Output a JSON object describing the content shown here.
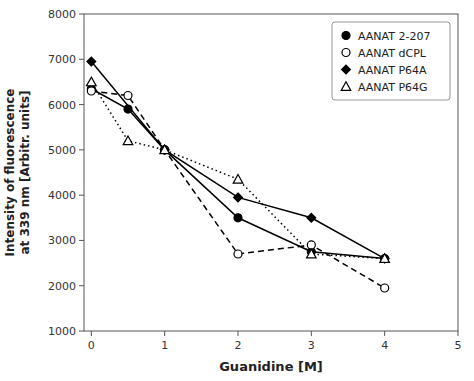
{
  "chart_data": {
    "type": "line",
    "xlabel": "Guanidine [M]",
    "ylabel": "Intensity of fluorescence\nat 339 nm [Arbitr. units]",
    "xlim": [
      -0.1,
      5
    ],
    "ylim": [
      1000,
      8000
    ],
    "xticks": [
      0,
      1,
      2,
      3,
      4,
      5
    ],
    "yticks": [
      1000,
      2000,
      3000,
      4000,
      5000,
      6000,
      7000,
      8000
    ],
    "grid": false,
    "legend": "upper right",
    "series": [
      {
        "name": "AANAT 2-207",
        "color": "black",
        "marker": "circle",
        "line_style": "solid",
        "x": [
          0,
          0.5,
          1,
          2,
          3,
          4
        ],
        "values": [
          6350,
          5900,
          5000,
          3500,
          2750,
          2600
        ]
      },
      {
        "name": "AANAT dCPL",
        "color": "black",
        "marker": "circle-open",
        "line_style": "dashed",
        "x": [
          0,
          0.5,
          1,
          2,
          3,
          4
        ],
        "values": [
          6300,
          6200,
          5000,
          2700,
          2900,
          1950
        ]
      },
      {
        "name": "AANAT P64A",
        "color": "black",
        "marker": "diamond",
        "line_style": "solid",
        "x": [
          0,
          1,
          2,
          3,
          4
        ],
        "values": [
          6950,
          5000,
          3950,
          3500,
          2600
        ]
      },
      {
        "name": "AANAT P64G",
        "color": "black",
        "marker": "triangle-open",
        "line_style": "dotted",
        "x": [
          0,
          0.5,
          1,
          2,
          3,
          4
        ],
        "values": [
          6500,
          5200,
          5000,
          4350,
          2700,
          2600
        ]
      }
    ]
  }
}
